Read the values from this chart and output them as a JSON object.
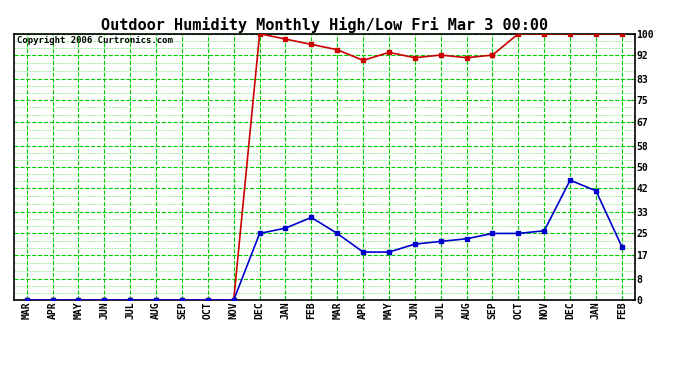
{
  "title": "Outdoor Humidity Monthly High/Low Fri Mar 3 00:00",
  "copyright": "Copyright 2006 Curtronics.com",
  "x_labels": [
    "MAR",
    "APR",
    "MAY",
    "JUN",
    "JUL",
    "AUG",
    "SEP",
    "OCT",
    "NOV",
    "DEC",
    "JAN",
    "FEB",
    "MAR",
    "APR",
    "MAY",
    "JUN",
    "JUL",
    "AUG",
    "SEP",
    "OCT",
    "NOV",
    "DEC",
    "JAN",
    "FEB"
  ],
  "y_ticks": [
    0,
    8,
    17,
    25,
    33,
    42,
    50,
    58,
    67,
    75,
    83,
    92,
    100
  ],
  "high_values": [
    0,
    0,
    0,
    0,
    0,
    0,
    0,
    0,
    0,
    100,
    98,
    96,
    94,
    90,
    93,
    91,
    92,
    91,
    92,
    100,
    100,
    100,
    100,
    100
  ],
  "low_values": [
    0,
    0,
    0,
    0,
    0,
    0,
    0,
    0,
    0,
    25,
    27,
    31,
    25,
    18,
    18,
    21,
    22,
    23,
    25,
    25,
    26,
    45,
    41,
    20
  ],
  "high_color": "#cc0000",
  "low_color": "#0000cc",
  "bg_color": "#ffffff",
  "plot_bg_color": "#ffffff",
  "grid_major_color": "#00cc00",
  "grid_minor_color": "#00cc00",
  "border_color": "#000000",
  "title_fontsize": 11,
  "label_fontsize": 7,
  "copyright_fontsize": 6.5,
  "ylim": [
    0,
    100
  ]
}
